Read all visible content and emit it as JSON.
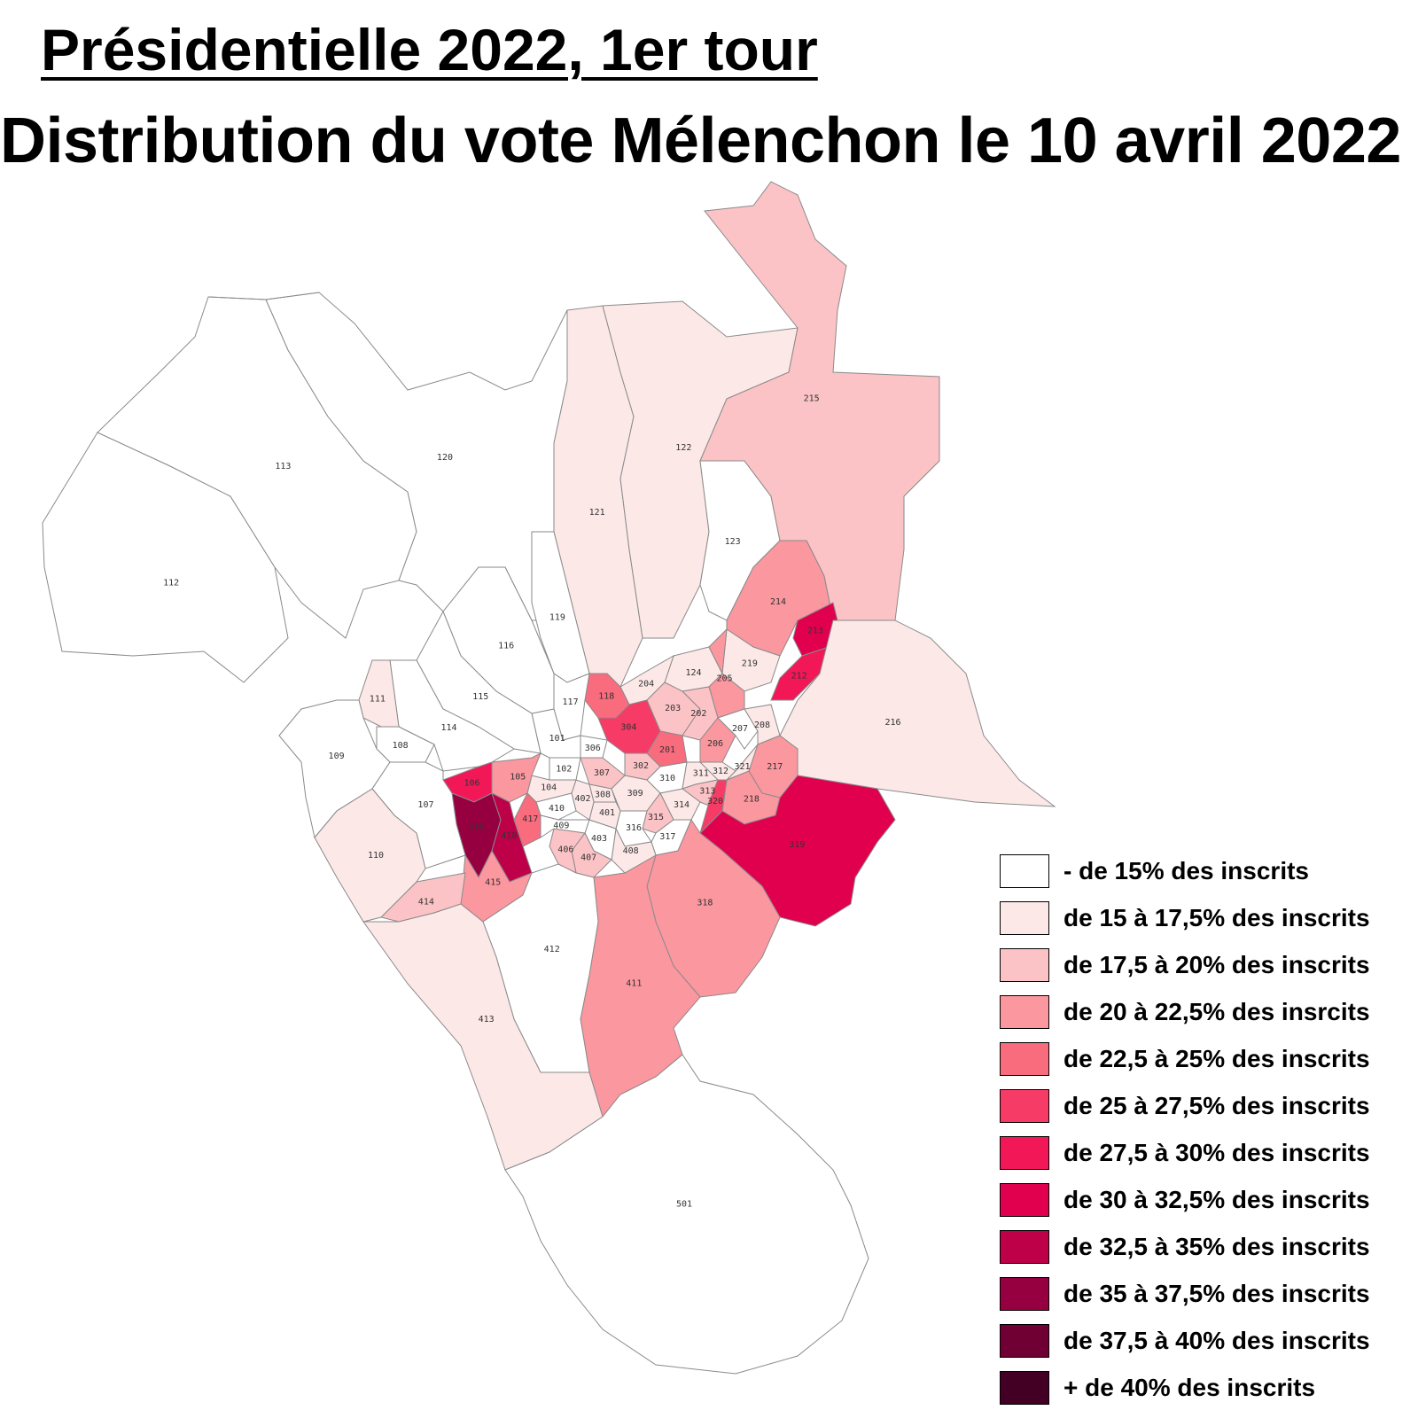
{
  "header": {
    "title": "Présidentielle 2022, 1er tour",
    "subtitle": "Distribution du vote Mélenchon le 10 avril 2022"
  },
  "legend": [
    {
      "label": "- de 15% des inscrits",
      "color": "#ffffff"
    },
    {
      "label": "de 15 à 17,5% des inscrits",
      "color": "#fde8e8"
    },
    {
      "label": "de 17,5 à 20% des inscrits",
      "color": "#fcc3c6"
    },
    {
      "label": "de 20 à 22,5% des insrcits",
      "color": "#fb979f"
    },
    {
      "label": "de 22,5 à 25% des inscrits",
      "color": "#f86c7e"
    },
    {
      "label": "de 25 à 27,5% des inscrits",
      "color": "#f63b66"
    },
    {
      "label": "de 27,5 à 30% des inscrits",
      "color": "#f21858"
    },
    {
      "label": "de 30 à 32,5% des inscrits",
      "color": "#e0004d"
    },
    {
      "label": "de 32,5 à 35% des inscrits",
      "color": "#be0049"
    },
    {
      "label": "de 35 à 37,5% des inscrits",
      "color": "#970040"
    },
    {
      "label": "de 37,5 à 40% des inscrits",
      "color": "#700033"
    },
    {
      "label": "+ de 40% des inscrits",
      "color": "#440024"
    }
  ],
  "zones": [
    {
      "id": "101",
      "class": 0
    },
    {
      "id": "102",
      "class": 0
    },
    {
      "id": "104",
      "class": 1
    },
    {
      "id": "105",
      "class": 3
    },
    {
      "id": "106",
      "class": 6
    },
    {
      "id": "107",
      "class": 0
    },
    {
      "id": "108",
      "class": 0
    },
    {
      "id": "109",
      "class": 0
    },
    {
      "id": "110",
      "class": 1
    },
    {
      "id": "111",
      "class": 1
    },
    {
      "id": "112",
      "class": 0
    },
    {
      "id": "113",
      "class": 0
    },
    {
      "id": "114",
      "class": 0
    },
    {
      "id": "115",
      "class": 0
    },
    {
      "id": "116",
      "class": 0
    },
    {
      "id": "117",
      "class": 0
    },
    {
      "id": "118",
      "class": 4
    },
    {
      "id": "119",
      "class": 0
    },
    {
      "id": "120",
      "class": 0
    },
    {
      "id": "121",
      "class": 1
    },
    {
      "id": "122",
      "class": 1
    },
    {
      "id": "123",
      "class": 0
    },
    {
      "id": "124",
      "class": 1
    },
    {
      "id": "201",
      "class": 4
    },
    {
      "id": "202",
      "class": 2
    },
    {
      "id": "203",
      "class": 2
    },
    {
      "id": "204",
      "class": 1
    },
    {
      "id": "205",
      "class": 3
    },
    {
      "id": "206",
      "class": 3
    },
    {
      "id": "207",
      "class": 0
    },
    {
      "id": "208",
      "class": 1
    },
    {
      "id": "212",
      "class": 6
    },
    {
      "id": "213",
      "class": 7
    },
    {
      "id": "214",
      "class": 3
    },
    {
      "id": "215",
      "class": 2
    },
    {
      "id": "216",
      "class": 1
    },
    {
      "id": "217",
      "class": 3
    },
    {
      "id": "218",
      "class": 3
    },
    {
      "id": "219",
      "class": 1
    },
    {
      "id": "302",
      "class": 2
    },
    {
      "id": "304",
      "class": 5
    },
    {
      "id": "306",
      "class": 0
    },
    {
      "id": "307",
      "class": 2
    },
    {
      "id": "308",
      "class": 1
    },
    {
      "id": "309",
      "class": 1
    },
    {
      "id": "310",
      "class": 0
    },
    {
      "id": "311",
      "class": 1
    },
    {
      "id": "312",
      "class": 1
    },
    {
      "id": "313",
      "class": 2
    },
    {
      "id": "314",
      "class": 1
    },
    {
      "id": "315",
      "class": 2
    },
    {
      "id": "316",
      "class": 0
    },
    {
      "id": "317",
      "class": 0
    },
    {
      "id": "318",
      "class": 3
    },
    {
      "id": "319",
      "class": 7
    },
    {
      "id": "320",
      "class": 5
    },
    {
      "id": "321",
      "class": 1
    },
    {
      "id": "401",
      "class": 1
    },
    {
      "id": "402",
      "class": 1
    },
    {
      "id": "403",
      "class": 0
    },
    {
      "id": "406",
      "class": 2
    },
    {
      "id": "407",
      "class": 2
    },
    {
      "id": "408",
      "class": 1
    },
    {
      "id": "409",
      "class": 0
    },
    {
      "id": "410",
      "class": 0
    },
    {
      "id": "411",
      "class": 3
    },
    {
      "id": "412",
      "class": 0
    },
    {
      "id": "413",
      "class": 1
    },
    {
      "id": "414",
      "class": 2
    },
    {
      "id": "415",
      "class": 3
    },
    {
      "id": "416",
      "class": 9
    },
    {
      "id": "417",
      "class": 4
    },
    {
      "id": "418",
      "class": 8
    },
    {
      "id": "501",
      "class": 0
    }
  ]
}
